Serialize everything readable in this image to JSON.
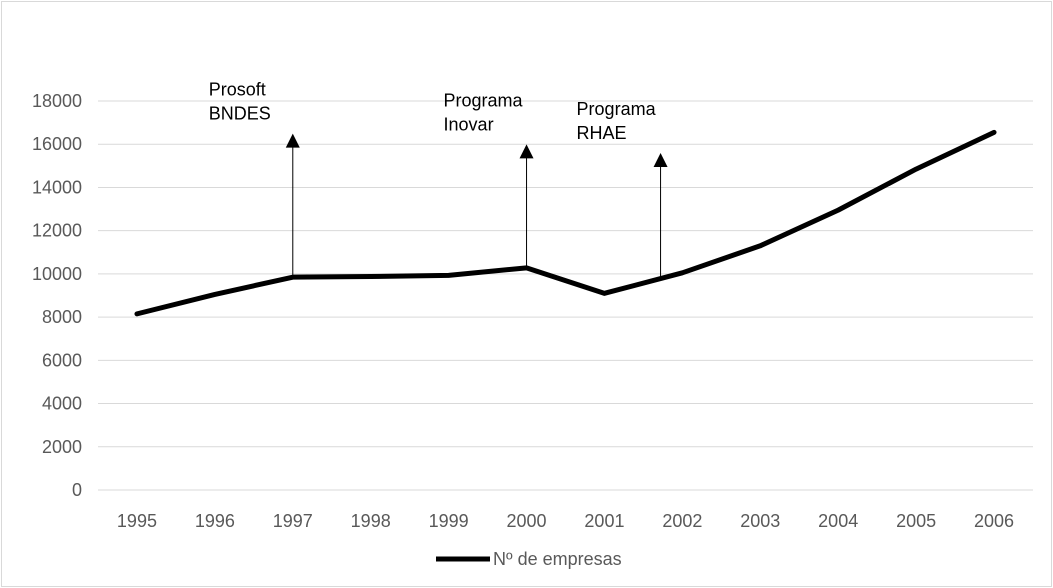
{
  "chart_data": {
    "type": "line",
    "categories": [
      "1995",
      "1996",
      "1997",
      "1998",
      "1999",
      "2000",
      "2001",
      "2002",
      "2003",
      "2004",
      "2005",
      "2006"
    ],
    "series": [
      {
        "name": "Nº de empresas",
        "color": "#000000",
        "values": [
          8150,
          9050,
          9850,
          9880,
          9930,
          10280,
          9100,
          10050,
          11300,
          12950,
          14850,
          16550
        ]
      }
    ],
    "yticks": [
      "0",
      "2000",
      "4000",
      "6000",
      "8000",
      "10000",
      "12000",
      "14000",
      "16000",
      "18000"
    ],
    "ylim": [
      0,
      18000
    ],
    "grid": true,
    "legend_position": "bottom",
    "annotations": [
      {
        "lines": [
          "Prosoft",
          "BNDES"
        ],
        "x_index": 2,
        "y_from": 9850,
        "y_to": 16400
      },
      {
        "lines": [
          "Programa",
          "Inovar"
        ],
        "x_index": 5,
        "y_from": 10280,
        "y_to": 15900
      },
      {
        "lines": [
          "Programa",
          "RHAE"
        ],
        "x_index": 6.72,
        "y_from": 9850,
        "y_to": 15500
      }
    ]
  }
}
